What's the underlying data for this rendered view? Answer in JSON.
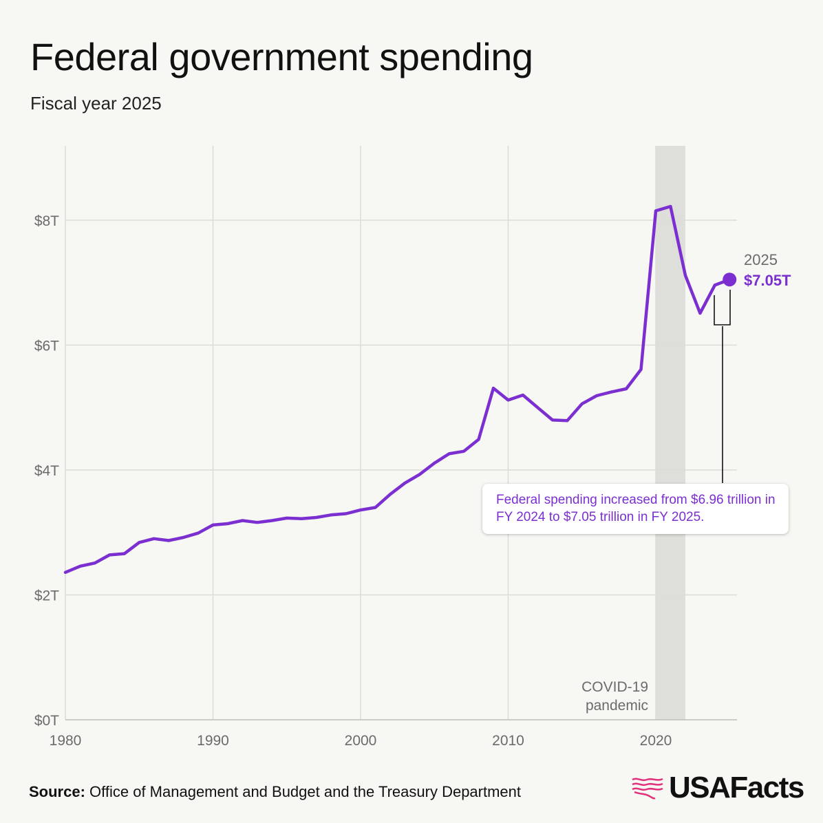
{
  "header": {
    "title": "Federal government spending",
    "subtitle": "Fiscal year 2025"
  },
  "footer": {
    "source_label": "Source:",
    "source_text": "Office of Management and Budget and the Treasury Department",
    "logo_text": "USAFacts",
    "logo_icon": "usa-flag-map-icon"
  },
  "annotations": {
    "end_year": "2025",
    "end_value": "$7.05T",
    "callout": "Federal spending increased from $6.96 trillion in FY 2024 to $7.05 trillion in FY 2025.",
    "covid_label_line1": "COVID-19",
    "covid_label_line2": "pandemic"
  },
  "colors": {
    "line": "#7b2fd0",
    "background": "#f7f7f4",
    "covid_band": "#dededa",
    "grid": "#dcdcd8",
    "logo_accent": "#e0317a"
  },
  "chart_data": {
    "type": "line",
    "title": "Federal government spending",
    "subtitle": "Fiscal year 2025",
    "xlabel": "",
    "ylabel": "",
    "xlim": [
      1980,
      2025
    ],
    "ylim": [
      0,
      9.2
    ],
    "x_ticks": [
      1980,
      1990,
      2000,
      2010,
      2020
    ],
    "x_tick_labels": [
      "1980",
      "1990",
      "2000",
      "2010",
      "2020"
    ],
    "y_ticks": [
      0,
      2,
      4,
      6,
      8
    ],
    "y_tick_labels": [
      "$0T",
      "$2T",
      "$4T",
      "$6T",
      "$8T"
    ],
    "grid": true,
    "shaded_region": {
      "x_start": 2020,
      "x_end": 2022,
      "label": "COVID-19 pandemic"
    },
    "series": [
      {
        "x": [
          1980,
          1981,
          1982,
          1983,
          1984,
          1985,
          1986,
          1987,
          1988,
          1989,
          1990,
          1991,
          1992,
          1993,
          1994,
          1995,
          1996,
          1997,
          1998,
          1999,
          2000,
          2001,
          2002,
          2003,
          2004,
          2005,
          2006,
          2007,
          2008,
          2009,
          2010,
          2011,
          2012,
          2013,
          2014,
          2015,
          2016,
          2017,
          2018,
          2019,
          2020,
          2021,
          2022,
          2023,
          2024,
          2025
        ],
        "values": [
          2.36,
          2.46,
          2.51,
          2.64,
          2.66,
          2.84,
          2.9,
          2.87,
          2.92,
          2.99,
          3.12,
          3.14,
          3.19,
          3.16,
          3.19,
          3.23,
          3.22,
          3.24,
          3.28,
          3.3,
          3.36,
          3.4,
          3.61,
          3.79,
          3.93,
          4.11,
          4.26,
          4.3,
          4.49,
          5.31,
          5.12,
          5.2,
          5.0,
          4.8,
          4.79,
          5.06,
          5.19,
          5.25,
          5.3,
          5.61,
          8.15,
          8.22,
          7.12,
          6.51,
          6.96,
          7.05
        ]
      }
    ]
  }
}
